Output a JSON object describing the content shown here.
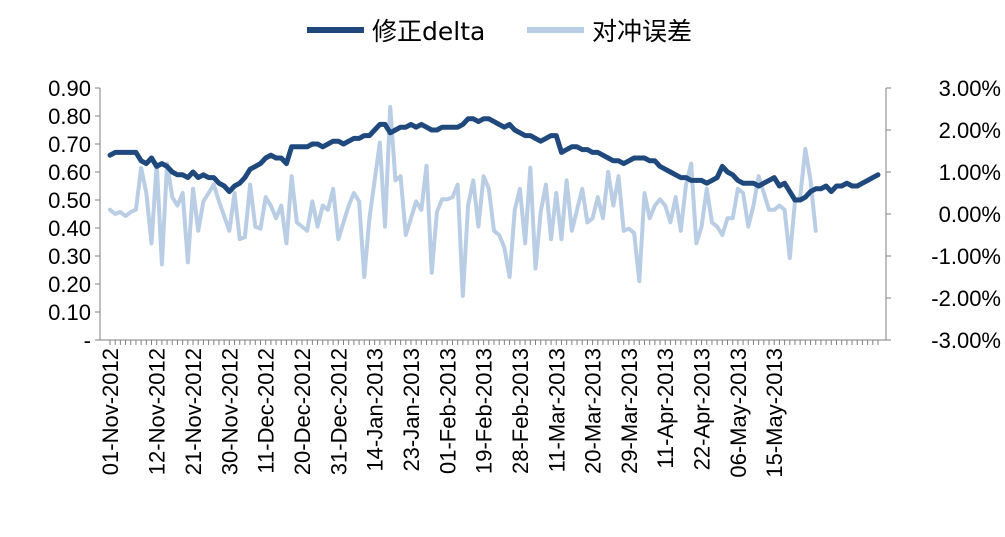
{
  "chart_data": {
    "type": "line",
    "title": "",
    "legend": {
      "placement": "top",
      "items": [
        "修正delta",
        "对冲误差"
      ]
    },
    "colors": {
      "series1": "#1f497d",
      "series2": "#b9cde5"
    },
    "y_left": {
      "ylim": [
        0,
        0.9
      ],
      "ticks": [
        {
          "v": 0.9,
          "label": "0.90"
        },
        {
          "v": 0.8,
          "label": "0.80"
        },
        {
          "v": 0.7,
          "label": "0.70"
        },
        {
          "v": 0.6,
          "label": "0.60"
        },
        {
          "v": 0.5,
          "label": "0.50"
        },
        {
          "v": 0.4,
          "label": "0.40"
        },
        {
          "v": 0.3,
          "label": "0.30"
        },
        {
          "v": 0.2,
          "label": "0.20"
        },
        {
          "v": 0.1,
          "label": "0.10"
        },
        {
          "v": 0,
          "label": "-"
        }
      ]
    },
    "y_right": {
      "ylim": [
        -3,
        3
      ],
      "ticks": [
        {
          "v": 3,
          "label": "3.00%"
        },
        {
          "v": 2,
          "label": "2.00%"
        },
        {
          "v": 1,
          "label": "1.00%"
        },
        {
          "v": 0,
          "label": "0.00%"
        },
        {
          "v": -1,
          "label": "-1.00%"
        },
        {
          "v": -2,
          "label": "-2.00%"
        },
        {
          "v": -3,
          "label": "-3.00%"
        }
      ]
    },
    "x_tick_labels": [
      {
        "i": 0,
        "label": "01-Nov-2012"
      },
      {
        "i": 9,
        "label": "12-Nov-2012"
      },
      {
        "i": 16,
        "label": "21-Nov-2012"
      },
      {
        "i": 23,
        "label": "30-Nov-2012"
      },
      {
        "i": 30,
        "label": "11-Dec-2012"
      },
      {
        "i": 37,
        "label": "20-Dec-2012"
      },
      {
        "i": 44,
        "label": "31-Dec-2012"
      },
      {
        "i": 51,
        "label": "14-Jan-2013"
      },
      {
        "i": 58,
        "label": "23-Jan-2013"
      },
      {
        "i": 65,
        "label": "01-Feb-2013"
      },
      {
        "i": 72,
        "label": "19-Feb-2013"
      },
      {
        "i": 79,
        "label": "28-Feb-2013"
      },
      {
        "i": 86,
        "label": "11-Mar-2013"
      },
      {
        "i": 93,
        "label": "20-Mar-2013"
      },
      {
        "i": 100,
        "label": "29-Mar-2013"
      },
      {
        "i": 107,
        "label": "11-Apr-2013"
      },
      {
        "i": 114,
        "label": "22-Apr-2013"
      },
      {
        "i": 121,
        "label": "06-May-2013"
      },
      {
        "i": 128,
        "label": "15-May-2013"
      }
    ],
    "series": [
      {
        "name": "修正delta",
        "axis": "left",
        "values": [
          0.66,
          0.67,
          0.67,
          0.67,
          0.67,
          0.67,
          0.64,
          0.63,
          0.65,
          0.62,
          0.63,
          0.62,
          0.6,
          0.59,
          0.59,
          0.58,
          0.6,
          0.58,
          0.59,
          0.58,
          0.58,
          0.56,
          0.55,
          0.53,
          0.55,
          0.56,
          0.58,
          0.61,
          0.62,
          0.63,
          0.65,
          0.66,
          0.65,
          0.65,
          0.63,
          0.69,
          0.69,
          0.69,
          0.69,
          0.7,
          0.7,
          0.69,
          0.7,
          0.71,
          0.71,
          0.7,
          0.71,
          0.72,
          0.72,
          0.73,
          0.73,
          0.75,
          0.77,
          0.77,
          0.74,
          0.75,
          0.76,
          0.76,
          0.77,
          0.76,
          0.77,
          0.76,
          0.75,
          0.75,
          0.76,
          0.76,
          0.76,
          0.76,
          0.77,
          0.79,
          0.79,
          0.78,
          0.79,
          0.79,
          0.78,
          0.77,
          0.76,
          0.77,
          0.75,
          0.74,
          0.73,
          0.73,
          0.72,
          0.71,
          0.72,
          0.73,
          0.73,
          0.67,
          0.68,
          0.69,
          0.69,
          0.68,
          0.68,
          0.67,
          0.67,
          0.66,
          0.65,
          0.64,
          0.64,
          0.63,
          0.64,
          0.65,
          0.65,
          0.65,
          0.64,
          0.64,
          0.62,
          0.61,
          0.6,
          0.59,
          0.58,
          0.58,
          0.57,
          0.57,
          0.57,
          0.56,
          0.57,
          0.58,
          0.62,
          0.6,
          0.59,
          0.57,
          0.56,
          0.56,
          0.56,
          0.55,
          0.56,
          0.57,
          0.58,
          0.55,
          0.56,
          0.53,
          0.5,
          0.5,
          0.51,
          0.53,
          0.54,
          0.54,
          0.55,
          0.53,
          0.55,
          0.55,
          0.56,
          0.55,
          0.55,
          0.56,
          0.57,
          0.58,
          0.59
        ]
      },
      {
        "name": "对冲误差",
        "axis": "right",
        "values": [
          0.1,
          0.0,
          0.05,
          -0.05,
          0.05,
          0.1,
          1.1,
          0.5,
          -0.7,
          1.2,
          -1.2,
          1.2,
          0.4,
          0.2,
          0.5,
          -1.15,
          0.6,
          -0.4,
          0.3,
          0.5,
          0.7,
          0.3,
          -0.05,
          -0.4,
          0.5,
          -0.6,
          -0.55,
          0.7,
          -0.3,
          -0.35,
          0.4,
          0.2,
          -0.1,
          0.2,
          -0.7,
          0.9,
          -0.2,
          -0.3,
          -0.4,
          0.3,
          -0.3,
          0.2,
          0.1,
          0.6,
          -0.6,
          -0.2,
          0.2,
          0.5,
          0.3,
          -1.5,
          -0.1,
          0.8,
          1.7,
          -0.3,
          2.55,
          0.8,
          0.9,
          -0.5,
          -0.1,
          0.3,
          0.1,
          1.15,
          -1.4,
          0.05,
          0.35,
          0.35,
          0.4,
          0.7,
          -1.95,
          0.2,
          0.8,
          -0.3,
          0.9,
          0.6,
          -0.4,
          -0.5,
          -0.8,
          -1.5,
          0.1,
          0.6,
          -0.7,
          1.1,
          -1.3,
          0.05,
          0.7,
          -0.6,
          0.5,
          -0.6,
          0.8,
          -0.4,
          0.1,
          0.6,
          -0.2,
          -0.1,
          0.4,
          -0.1,
          1.0,
          0.2,
          0.9,
          -0.4,
          -0.35,
          -0.45,
          -1.6,
          0.5,
          -0.1,
          0.2,
          0.35,
          0.2,
          -0.2,
          0.4,
          -0.4,
          0.7,
          1.2,
          -0.7,
          -0.3,
          0.6,
          -0.2,
          -0.3,
          -0.5,
          -0.1,
          -0.1,
          0.6,
          0.5,
          -0.3,
          0.2,
          0.9,
          0.5,
          0.1,
          0.1,
          0.2,
          0.1,
          -1.05,
          0.3,
          0.4,
          1.55,
          0.8,
          -0.4
        ]
      }
    ]
  }
}
